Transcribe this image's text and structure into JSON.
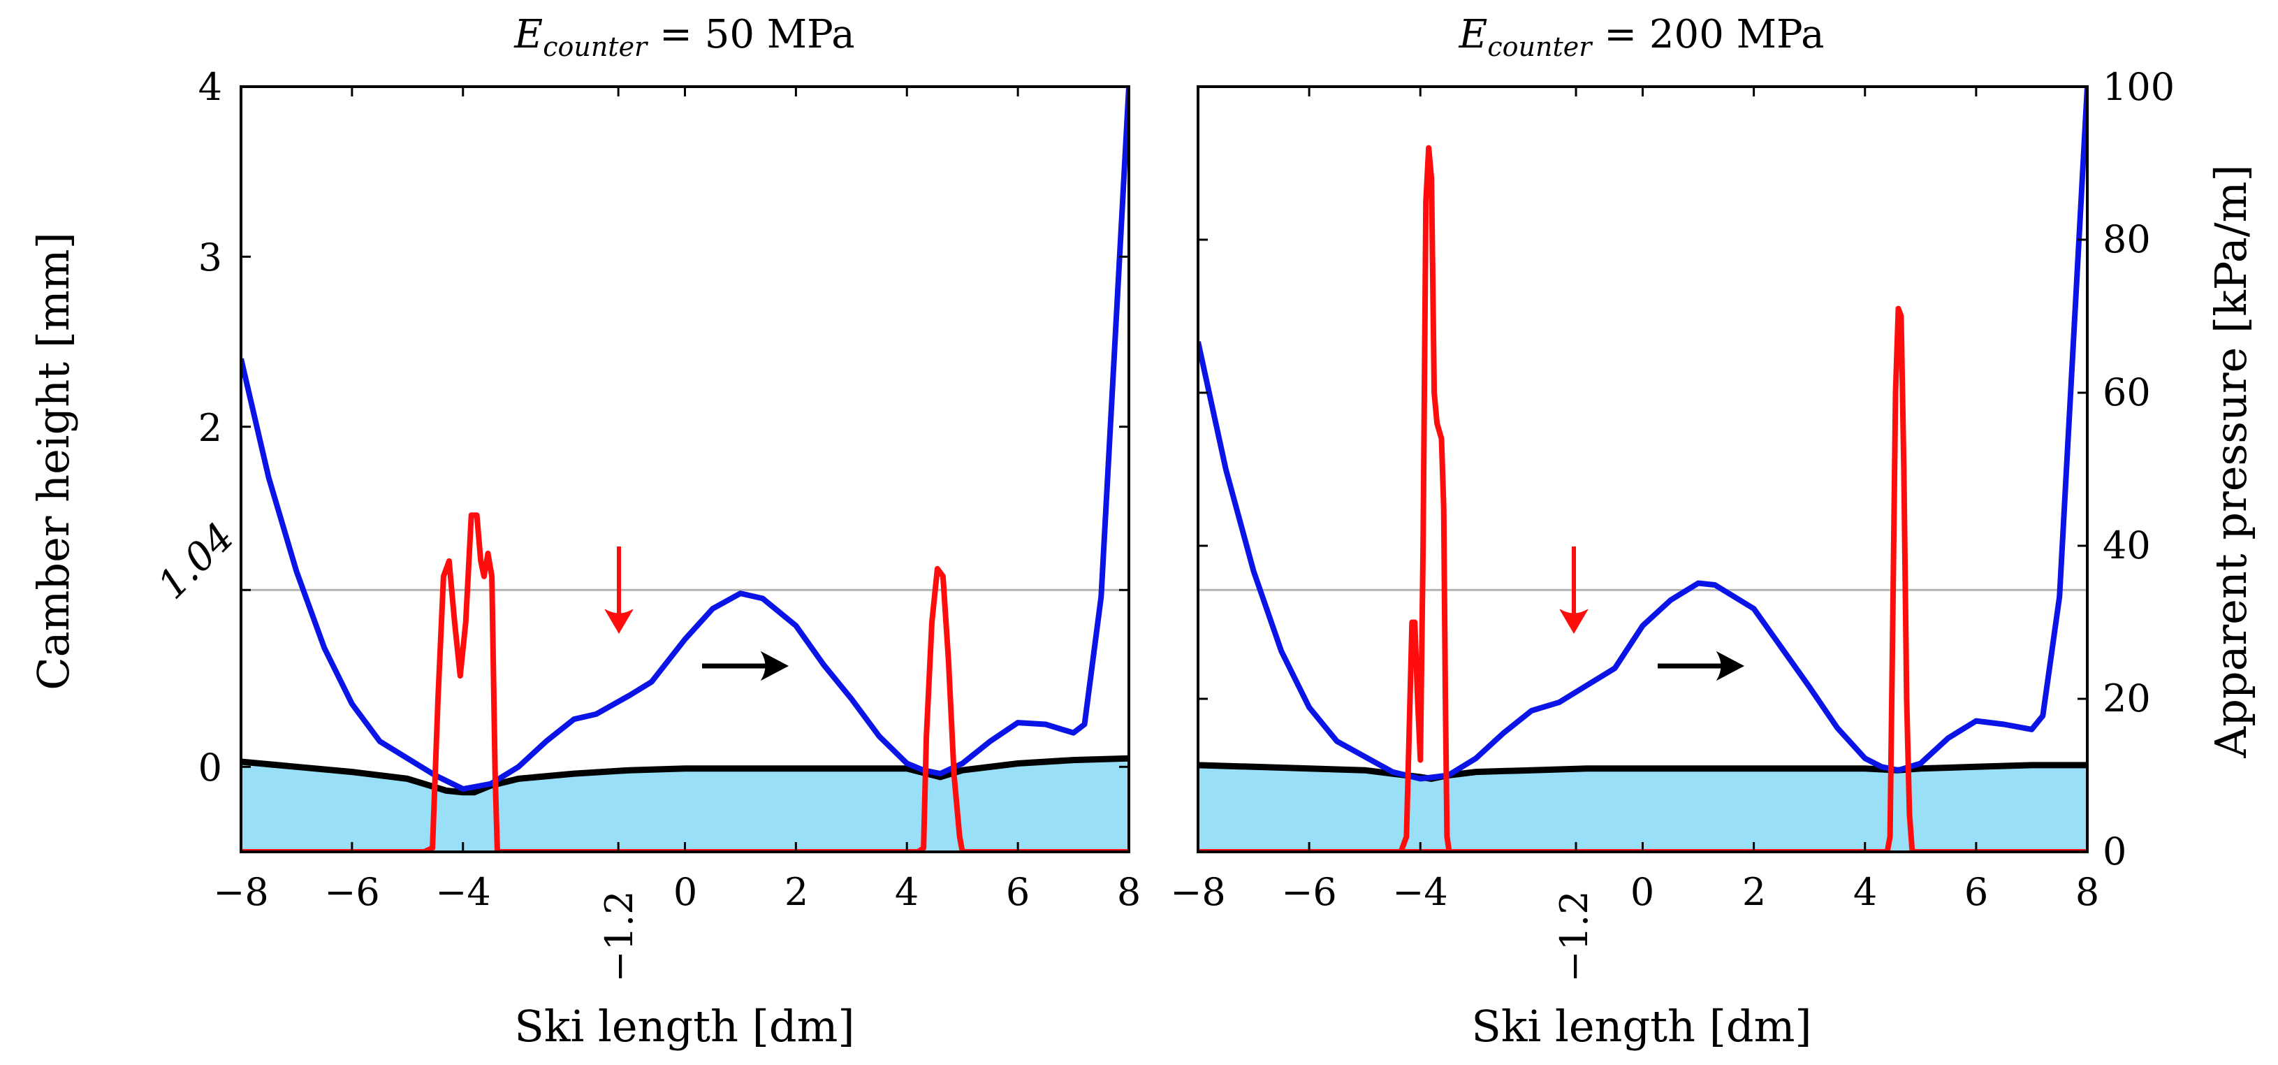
{
  "colors": {
    "camber": "#0a14e6",
    "pressure": "#ff0d0d",
    "snow_surface": "#000000",
    "snow_fill": "#99dff7",
    "guide_line": "#b3b3b3",
    "arrow_down": "#ff0d0d",
    "arrow_right": "#000000"
  },
  "shared": {
    "xlabel": "Ski length [dm]",
    "ylabel_left": "Camber height [mm]",
    "ylabel_right": "Apparent pressure [kPa/m]",
    "x_ticks": [
      "−8",
      "−6",
      "−4",
      "0",
      "2",
      "4",
      "6",
      "8"
    ],
    "x_special_tick": "−1.2",
    "y_left_ticks": [
      "0",
      "2",
      "3",
      "4"
    ],
    "y_left_special_tick": "1.04",
    "y_right_ticks": [
      "0",
      "20",
      "40",
      "60",
      "80",
      "100"
    ]
  },
  "panels": [
    {
      "title_var": "E",
      "title_sub": "counter",
      "title_rest": " = 50 MPa"
    },
    {
      "title_var": "E",
      "title_sub": "counter",
      "title_rest": " = 200 MPa"
    }
  ],
  "chart_data": [
    {
      "type": "line",
      "title": "E_counter = 50 MPa",
      "xlabel": "Ski length [dm]",
      "ylabel": "Camber height [mm]",
      "y2label": "Apparent pressure [kPa/m]",
      "xlim": [
        -8,
        8
      ],
      "ylim": [
        -0.5,
        4
      ],
      "y2lim": [
        0,
        100
      ],
      "reference_line": {
        "y": 1.04,
        "label": "1.04"
      },
      "markers": {
        "load_arrow_x": -1.2,
        "direction_arrow": "right"
      },
      "series": [
        {
          "axis": "left",
          "x": [
            -8,
            -7.5,
            -7,
            -6.5,
            -6,
            -5.5,
            -5,
            -4.5,
            -4,
            -3.5,
            -3,
            -2.5,
            -2,
            -1.6,
            -1,
            -0.6,
            0,
            0.5,
            1,
            1.4,
            2,
            2.5,
            3,
            3.5,
            4,
            4.3,
            4.6,
            5,
            5.5,
            6,
            6.5,
            7,
            7.2,
            7.5,
            7.8,
            8
          ],
          "y": [
            2.4,
            1.7,
            1.15,
            0.7,
            0.37,
            0.15,
            0.05,
            -0.05,
            -0.13,
            -0.1,
            0,
            0.15,
            0.28,
            0.31,
            0.42,
            0.5,
            0.75,
            0.93,
            1.02,
            0.99,
            0.83,
            0.6,
            0.4,
            0.18,
            0.02,
            -0.02,
            -0.04,
            0.02,
            0.15,
            0.26,
            0.25,
            0.2,
            0.25,
            1.0,
            2.8,
            4.0
          ]
        },
        {
          "axis": "right",
          "x": [
            -8,
            -4.7,
            -4.55,
            -4.45,
            -4.35,
            -4.25,
            -4.15,
            -4.05,
            -3.95,
            -3.85,
            -3.75,
            -3.68,
            -3.62,
            -3.55,
            -3.48,
            -3.42,
            -3.38,
            -3.3,
            -3.2,
            4.2,
            4.3,
            4.35,
            4.45,
            4.55,
            4.65,
            4.75,
            4.85,
            4.95,
            5.0,
            8
          ],
          "y": [
            0,
            0,
            0.5,
            20,
            36,
            38,
            30,
            23,
            30,
            44,
            44,
            38,
            36,
            39,
            36,
            10,
            0,
            0,
            0,
            0,
            0.5,
            15,
            30,
            37,
            36,
            25,
            10,
            2,
            0,
            0
          ]
        },
        {
          "axis": "left",
          "x": [
            -8,
            -7,
            -6,
            -5,
            -4.5,
            -4.3,
            -4,
            -3.8,
            -3.5,
            -3,
            -2,
            -1,
            0,
            1,
            2,
            3,
            4,
            4.6,
            5,
            6,
            7,
            8
          ],
          "y": [
            0.03,
            0.0,
            -0.03,
            -0.07,
            -0.12,
            -0.14,
            -0.15,
            -0.15,
            -0.11,
            -0.07,
            -0.04,
            -0.02,
            -0.01,
            -0.01,
            -0.01,
            -0.01,
            -0.01,
            -0.06,
            -0.02,
            0.02,
            0.04,
            0.05
          ]
        }
      ]
    },
    {
      "type": "line",
      "title": "E_counter = 200 MPa",
      "xlabel": "Ski length [dm]",
      "ylabel": "Camber height [mm]",
      "y2label": "Apparent pressure [kPa/m]",
      "xlim": [
        -8,
        8
      ],
      "ylim": [
        -0.5,
        4
      ],
      "y2lim": [
        0,
        100
      ],
      "reference_line": {
        "y": 1.04,
        "label": "1.04"
      },
      "markers": {
        "load_arrow_x": -1.2,
        "direction_arrow": "right"
      },
      "series": [
        {
          "axis": "left",
          "x": [
            -8,
            -7.5,
            -7,
            -6.5,
            -6,
            -5.5,
            -5,
            -4.5,
            -4,
            -3.5,
            -3,
            -2.5,
            -2,
            -1.5,
            -1,
            -0.5,
            0,
            0.5,
            1,
            1.3,
            2,
            2.5,
            3,
            3.5,
            4,
            4.3,
            4.6,
            5,
            5.5,
            6,
            6.5,
            7,
            7.2,
            7.5,
            7.8,
            8
          ],
          "y": [
            2.5,
            1.75,
            1.15,
            0.68,
            0.35,
            0.15,
            0.06,
            -0.03,
            -0.07,
            -0.05,
            0.05,
            0.2,
            0.33,
            0.38,
            0.48,
            0.58,
            0.83,
            0.98,
            1.08,
            1.07,
            0.93,
            0.7,
            0.47,
            0.23,
            0.05,
            0.0,
            -0.02,
            0.02,
            0.17,
            0.27,
            0.25,
            0.22,
            0.3,
            1.0,
            2.8,
            4.0
          ]
        },
        {
          "axis": "right",
          "x": [
            -8,
            -4.35,
            -4.25,
            -4.15,
            -4.1,
            -4.05,
            -4.0,
            -3.95,
            -3.9,
            -3.85,
            -3.8,
            -3.75,
            -3.7,
            -3.62,
            -3.58,
            -3.55,
            -3.52,
            -3.48,
            -8,
            4.4,
            4.45,
            4.5,
            4.55,
            4.6,
            4.65,
            4.7,
            4.75,
            4.8,
            4.85,
            8
          ],
          "y": [
            0,
            0,
            2,
            30,
            30,
            20,
            12,
            40,
            85,
            92,
            88,
            60,
            56,
            54,
            45,
            20,
            2,
            0,
            0,
            0,
            2,
            30,
            60,
            71,
            70,
            50,
            20,
            5,
            0,
            0
          ]
        },
        {
          "axis": "left",
          "x": [
            -8,
            -7,
            -6,
            -5,
            -4.5,
            -4,
            -3.8,
            -3.5,
            -3,
            -2,
            -1,
            0,
            1,
            2,
            3,
            4,
            4.6,
            5,
            6,
            7,
            8
          ],
          "y": [
            0.01,
            0.0,
            -0.01,
            -0.02,
            -0.04,
            -0.06,
            -0.07,
            -0.05,
            -0.03,
            -0.02,
            -0.01,
            -0.01,
            -0.01,
            -0.01,
            -0.01,
            -0.01,
            -0.02,
            -0.01,
            0.0,
            0.01,
            0.01
          ]
        }
      ]
    }
  ]
}
